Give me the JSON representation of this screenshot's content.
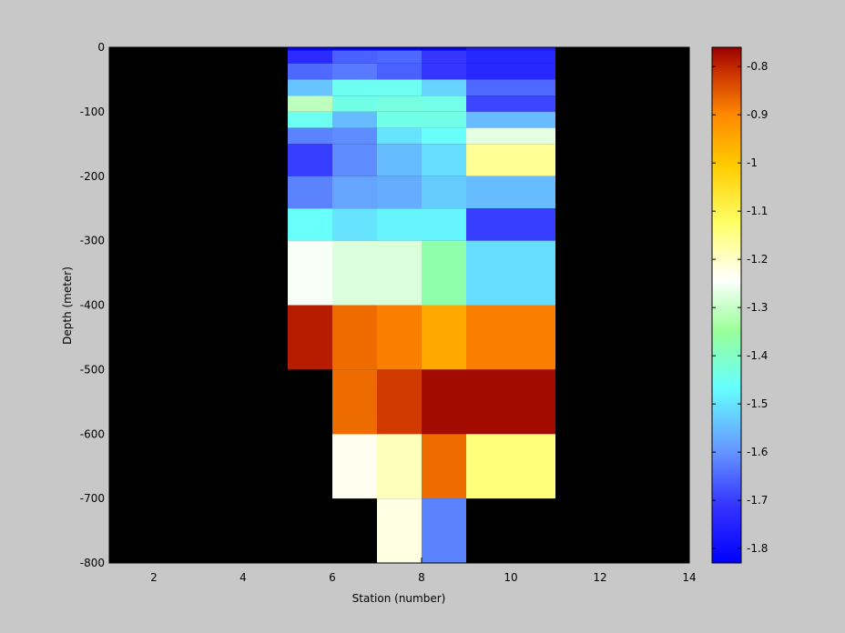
{
  "chart_data": {
    "type": "heatmap",
    "xlabel": "Station (number)",
    "ylabel": "Depth (meter)",
    "xlim": [
      1,
      14
    ],
    "ylim": [
      -800,
      0
    ],
    "x_ticks": [
      2,
      4,
      6,
      8,
      10,
      12,
      14
    ],
    "y_ticks": [
      0,
      -100,
      -200,
      -300,
      -400,
      -500,
      -600,
      -700,
      -800
    ],
    "background_color": "#000000",
    "colormap": "jet",
    "colorbar": {
      "range": [
        -1.83,
        -0.76
      ],
      "ticks": [
        -0.8,
        -0.9,
        -1,
        -1.1,
        -1.2,
        -1.3,
        -1.4,
        -1.5,
        -1.6,
        -1.7,
        -1.8
      ],
      "tick_labels": [
        "-0.8",
        "-0.9",
        "-1",
        "-1.1",
        "-1.2",
        "-1.3",
        "-1.4",
        "-1.5",
        "-1.6",
        "-1.7",
        "-1.8"
      ]
    },
    "cells": [
      {
        "x": [
          5,
          6
        ],
        "y": [
          -5,
          0
        ],
        "value": -1.82
      },
      {
        "x": [
          5,
          6
        ],
        "y": [
          -25,
          -5
        ],
        "value": -1.73
      },
      {
        "x": [
          5,
          6
        ],
        "y": [
          -50,
          -25
        ],
        "value": -1.65
      },
      {
        "x": [
          5,
          6
        ],
        "y": [
          -75,
          -50
        ],
        "value": -1.54
      },
      {
        "x": [
          5,
          6
        ],
        "y": [
          -100,
          -75
        ],
        "value": -1.31
      },
      {
        "x": [
          5,
          6
        ],
        "y": [
          -125,
          -100
        ],
        "value": -1.45
      },
      {
        "x": [
          5,
          6
        ],
        "y": [
          -150,
          -125
        ],
        "value": -1.62
      },
      {
        "x": [
          5,
          6
        ],
        "y": [
          -200,
          -150
        ],
        "value": -1.7
      },
      {
        "x": [
          5,
          6
        ],
        "y": [
          -250,
          -200
        ],
        "value": -1.62
      },
      {
        "x": [
          5,
          6
        ],
        "y": [
          -300,
          -250
        ],
        "value": -1.46
      },
      {
        "x": [
          5,
          6
        ],
        "y": [
          -400,
          -300
        ],
        "value": -1.25
      },
      {
        "x": [
          5,
          6
        ],
        "y": [
          -500,
          -400
        ],
        "value": -0.79
      },
      {
        "x": [
          6,
          7
        ],
        "y": [
          -5,
          0
        ],
        "value": -1.82
      },
      {
        "x": [
          6,
          7
        ],
        "y": [
          -25,
          -5
        ],
        "value": -1.66
      },
      {
        "x": [
          6,
          7
        ],
        "y": [
          -50,
          -25
        ],
        "value": -1.63
      },
      {
        "x": [
          6,
          7
        ],
        "y": [
          -75,
          -50
        ],
        "value": -1.45
      },
      {
        "x": [
          6,
          7
        ],
        "y": [
          -100,
          -75
        ],
        "value": -1.44
      },
      {
        "x": [
          6,
          7
        ],
        "y": [
          -125,
          -100
        ],
        "value": -1.55
      },
      {
        "x": [
          6,
          7
        ],
        "y": [
          -150,
          -125
        ],
        "value": -1.61
      },
      {
        "x": [
          6,
          7
        ],
        "y": [
          -200,
          -150
        ],
        "value": -1.61
      },
      {
        "x": [
          6,
          7
        ],
        "y": [
          -250,
          -200
        ],
        "value": -1.58
      },
      {
        "x": [
          6,
          7
        ],
        "y": [
          -300,
          -250
        ],
        "value": -1.5
      },
      {
        "x": [
          6,
          7
        ],
        "y": [
          -400,
          -300
        ],
        "value": -1.28
      },
      {
        "x": [
          6,
          7
        ],
        "y": [
          -500,
          -400
        ],
        "value": -0.87
      },
      {
        "x": [
          6,
          7
        ],
        "y": [
          -600,
          -500
        ],
        "value": -0.87
      },
      {
        "x": [
          6,
          7
        ],
        "y": [
          -700,
          -600
        ],
        "value": -1.23
      },
      {
        "x": [
          7,
          8
        ],
        "y": [
          -5,
          0
        ],
        "value": -1.82
      },
      {
        "x": [
          7,
          8
        ],
        "y": [
          -25,
          -5
        ],
        "value": -1.65
      },
      {
        "x": [
          7,
          8
        ],
        "y": [
          -50,
          -25
        ],
        "value": -1.66
      },
      {
        "x": [
          7,
          8
        ],
        "y": [
          -75,
          -50
        ],
        "value": -1.45
      },
      {
        "x": [
          7,
          8
        ],
        "y": [
          -100,
          -75
        ],
        "value": -1.43
      },
      {
        "x": [
          7,
          8
        ],
        "y": [
          -125,
          -100
        ],
        "value": -1.44
      },
      {
        "x": [
          7,
          8
        ],
        "y": [
          -150,
          -125
        ],
        "value": -1.5
      },
      {
        "x": [
          7,
          8
        ],
        "y": [
          -200,
          -150
        ],
        "value": -1.55
      },
      {
        "x": [
          7,
          8
        ],
        "y": [
          -250,
          -200
        ],
        "value": -1.57
      },
      {
        "x": [
          7,
          8
        ],
        "y": [
          -300,
          -250
        ],
        "value": -1.48
      },
      {
        "x": [
          7,
          8
        ],
        "y": [
          -400,
          -300
        ],
        "value": -1.28
      },
      {
        "x": [
          7,
          8
        ],
        "y": [
          -500,
          -400
        ],
        "value": -0.89
      },
      {
        "x": [
          7,
          8
        ],
        "y": [
          -600,
          -500
        ],
        "value": -0.82
      },
      {
        "x": [
          7,
          8
        ],
        "y": [
          -700,
          -600
        ],
        "value": -1.19
      },
      {
        "x": [
          7,
          8
        ],
        "y": [
          -800,
          -700
        ],
        "value": -1.22
      },
      {
        "x": [
          8,
          9
        ],
        "y": [
          -5,
          0
        ],
        "value": -1.82
      },
      {
        "x": [
          8,
          9
        ],
        "y": [
          -25,
          -5
        ],
        "value": -1.71
      },
      {
        "x": [
          8,
          9
        ],
        "y": [
          -50,
          -25
        ],
        "value": -1.71
      },
      {
        "x": [
          8,
          9
        ],
        "y": [
          -75,
          -50
        ],
        "value": -1.52
      },
      {
        "x": [
          8,
          9
        ],
        "y": [
          -100,
          -75
        ],
        "value": -1.44
      },
      {
        "x": [
          8,
          9
        ],
        "y": [
          -125,
          -100
        ],
        "value": -1.44
      },
      {
        "x": [
          8,
          9
        ],
        "y": [
          -150,
          -125
        ],
        "value": -1.46
      },
      {
        "x": [
          8,
          9
        ],
        "y": [
          -200,
          -150
        ],
        "value": -1.51
      },
      {
        "x": [
          8,
          9
        ],
        "y": [
          -250,
          -200
        ],
        "value": -1.53
      },
      {
        "x": [
          8,
          9
        ],
        "y": [
          -300,
          -250
        ],
        "value": -1.48
      },
      {
        "x": [
          8,
          9
        ],
        "y": [
          -400,
          -300
        ],
        "value": -1.37
      },
      {
        "x": [
          8,
          9
        ],
        "y": [
          -500,
          -400
        ],
        "value": -0.95
      },
      {
        "x": [
          8,
          9
        ],
        "y": [
          -600,
          -500
        ],
        "value": -0.77
      },
      {
        "x": [
          8,
          9
        ],
        "y": [
          -700,
          -600
        ],
        "value": -0.87
      },
      {
        "x": [
          8,
          9
        ],
        "y": [
          -800,
          -700
        ],
        "value": -1.62
      },
      {
        "x": [
          9,
          11
        ],
        "y": [
          -5,
          0
        ],
        "value": -1.77
      },
      {
        "x": [
          9,
          11
        ],
        "y": [
          -25,
          -5
        ],
        "value": -1.74
      },
      {
        "x": [
          9,
          11
        ],
        "y": [
          -50,
          -25
        ],
        "value": -1.74
      },
      {
        "x": [
          9,
          11
        ],
        "y": [
          -75,
          -50
        ],
        "value": -1.65
      },
      {
        "x": [
          9,
          11
        ],
        "y": [
          -100,
          -75
        ],
        "value": -1.69
      },
      {
        "x": [
          9,
          11
        ],
        "y": [
          -125,
          -100
        ],
        "value": -1.55
      },
      {
        "x": [
          9,
          11
        ],
        "y": [
          -150,
          -125
        ],
        "value": -1.27
      },
      {
        "x": [
          9,
          11
        ],
        "y": [
          -200,
          -150
        ],
        "value": -1.16
      },
      {
        "x": [
          9,
          11
        ],
        "y": [
          -250,
          -200
        ],
        "value": -1.55
      },
      {
        "x": [
          9,
          11
        ],
        "y": [
          -300,
          -250
        ],
        "value": -1.7
      },
      {
        "x": [
          9,
          11
        ],
        "y": [
          -400,
          -300
        ],
        "value": -1.51
      },
      {
        "x": [
          9,
          11
        ],
        "y": [
          -500,
          -400
        ],
        "value": -0.89
      },
      {
        "x": [
          9,
          11
        ],
        "y": [
          -600,
          -500
        ],
        "value": -0.77
      },
      {
        "x": [
          9,
          11
        ],
        "y": [
          -700,
          -600
        ],
        "value": -1.14
      }
    ]
  }
}
